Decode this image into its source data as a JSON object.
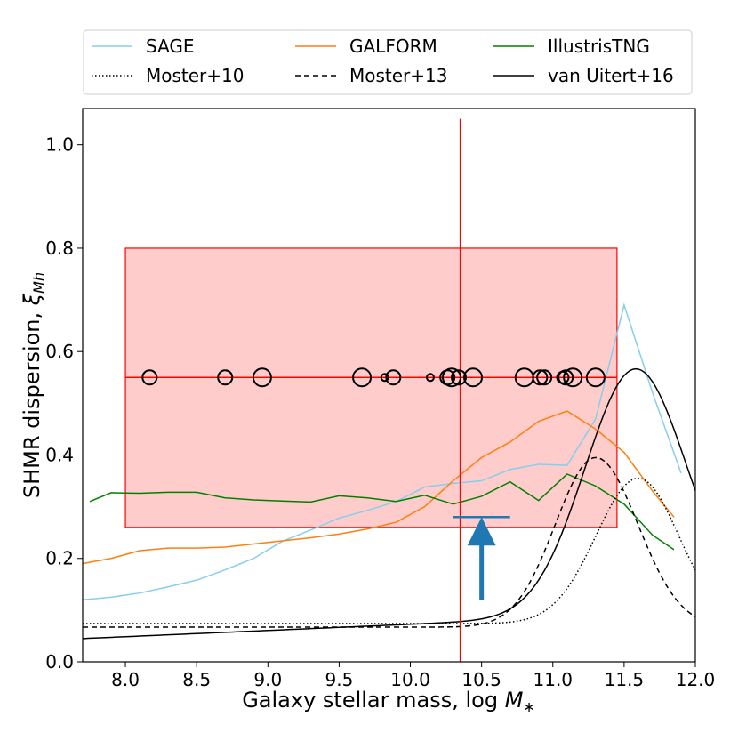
{
  "chart_data": {
    "type": "line",
    "xlabel": "Galaxy stellar mass, log M∗",
    "xlabel_parts": {
      "text": "Galaxy stellar mass, log ",
      "symbol": "M",
      "subscript": "∗"
    },
    "ylabel": "SHMR dispersion, ξMh",
    "ylabel_parts": {
      "text": "SHMR dispersion, ",
      "symbol": "ξ",
      "subscript": "Mh"
    },
    "xlim": [
      7.7,
      12.0
    ],
    "ylim": [
      0.0,
      1.07
    ],
    "xticks": [
      "8.0",
      "8.5",
      "9.0",
      "9.5",
      "10.0",
      "10.5",
      "11.0",
      "11.5",
      "12.0"
    ],
    "xtick_values": [
      8.0,
      8.5,
      9.0,
      9.5,
      10.0,
      10.5,
      11.0,
      11.5,
      12.0
    ],
    "yticks": [
      "0.0",
      "0.2",
      "0.4",
      "0.6",
      "0.8",
      "1.0"
    ],
    "ytick_values": [
      0.0,
      0.2,
      0.4,
      0.6,
      0.8,
      1.0
    ],
    "legend": [
      {
        "label": "SAGE",
        "color": "#87CEEB",
        "style": "solid"
      },
      {
        "label": "GALFORM",
        "color": "#FF7F0E",
        "style": "solid"
      },
      {
        "label": "IllustrisTNG",
        "color": "#008000",
        "style": "solid"
      },
      {
        "label": "Moster+10",
        "color": "#000000",
        "style": "dotted"
      },
      {
        "label": "Moster+13",
        "color": "#000000",
        "style": "dashed"
      },
      {
        "label": "van Uitert+16",
        "color": "#000000",
        "style": "solid"
      }
    ],
    "series": [
      {
        "name": "SAGE",
        "color": "#87CEEB",
        "style": "solid",
        "x": [
          7.7,
          7.9,
          8.1,
          8.3,
          8.5,
          8.7,
          8.9,
          9.1,
          9.3,
          9.5,
          9.7,
          9.9,
          10.1,
          10.3,
          10.5,
          10.7,
          10.9,
          11.1,
          11.3,
          11.5,
          11.7,
          11.9
        ],
        "y": [
          0.12,
          0.125,
          0.133,
          0.145,
          0.158,
          0.178,
          0.2,
          0.233,
          0.255,
          0.278,
          0.293,
          0.31,
          0.338,
          0.345,
          0.35,
          0.372,
          0.382,
          0.38,
          0.47,
          0.69,
          0.52,
          0.365
        ]
      },
      {
        "name": "GALFORM",
        "color": "#FF7F0E",
        "style": "solid",
        "x": [
          7.7,
          7.9,
          8.1,
          8.3,
          8.5,
          8.7,
          8.9,
          9.1,
          9.3,
          9.5,
          9.7,
          9.9,
          10.1,
          10.3,
          10.5,
          10.7,
          10.9,
          11.1,
          11.3,
          11.5,
          11.7,
          11.85
        ],
        "y": [
          0.19,
          0.2,
          0.215,
          0.22,
          0.22,
          0.222,
          0.228,
          0.234,
          0.24,
          0.247,
          0.257,
          0.27,
          0.3,
          0.35,
          0.395,
          0.425,
          0.465,
          0.485,
          0.45,
          0.405,
          0.33,
          0.28
        ]
      },
      {
        "name": "IllustrisTNG",
        "color": "#008000",
        "style": "solid",
        "x": [
          7.75,
          7.9,
          8.1,
          8.3,
          8.5,
          8.7,
          8.9,
          9.1,
          9.3,
          9.5,
          9.7,
          9.9,
          10.1,
          10.3,
          10.5,
          10.7,
          10.9,
          11.1,
          11.3,
          11.5,
          11.7,
          11.85
        ],
        "y": [
          0.31,
          0.327,
          0.326,
          0.328,
          0.328,
          0.317,
          0.313,
          0.311,
          0.309,
          0.321,
          0.317,
          0.31,
          0.322,
          0.305,
          0.32,
          0.348,
          0.312,
          0.363,
          0.34,
          0.305,
          0.245,
          0.217
        ]
      },
      {
        "name": "Moster+10",
        "color": "#000000",
        "style": "dotted",
        "model": "peak",
        "base": 0.074,
        "peak": 0.355,
        "center": 11.6,
        "width_low": 0.42,
        "width_high": 0.4
      },
      {
        "name": "Moster+13",
        "color": "#000000",
        "style": "dashed",
        "model": "peak",
        "base": 0.067,
        "peak": 0.395,
        "center": 11.3,
        "width_low": 0.4,
        "width_high": 0.42
      },
      {
        "name": "van Uitert+16",
        "color": "#000000",
        "style": "solid",
        "model": "peak",
        "base": 0.045,
        "peak": 0.52,
        "center": 11.58,
        "width_low": 0.5,
        "width_high": 0.5,
        "slope": 0.012
      }
    ],
    "box": {
      "x0": 8.0,
      "x1": 11.45,
      "y0": 0.26,
      "y1": 0.8,
      "fill": "#FF0000",
      "fill_opacity": 0.2,
      "edge": "#FF0000"
    },
    "hline": {
      "y": 0.55,
      "x0": 8.0,
      "x1": 11.45,
      "color": "#FF0000"
    },
    "vline": {
      "x": 10.35,
      "y0": 0.0,
      "y1": 1.05,
      "color": "#FF0000"
    },
    "circles": [
      {
        "x": 8.17,
        "size": "m"
      },
      {
        "x": 8.7,
        "size": "m"
      },
      {
        "x": 8.96,
        "size": "l"
      },
      {
        "x": 9.66,
        "size": "l"
      },
      {
        "x": 9.82,
        "size": "xs"
      },
      {
        "x": 9.88,
        "size": "m"
      },
      {
        "x": 10.14,
        "size": "xs"
      },
      {
        "x": 10.26,
        "size": "m"
      },
      {
        "x": 10.29,
        "size": "l"
      },
      {
        "x": 10.34,
        "size": "m"
      },
      {
        "x": 10.44,
        "size": "l"
      },
      {
        "x": 10.8,
        "size": "l"
      },
      {
        "x": 10.91,
        "size": "m"
      },
      {
        "x": 10.94,
        "size": "m"
      },
      {
        "x": 11.07,
        "size": "s"
      },
      {
        "x": 11.09,
        "size": "m"
      },
      {
        "x": 11.14,
        "size": "l"
      },
      {
        "x": 11.3,
        "size": "l"
      }
    ],
    "circles_y": 0.55,
    "upper_limit": {
      "x": 10.5,
      "y": 0.28,
      "x0": 10.3,
      "x1": 10.7,
      "arrow_to": 0.12,
      "color": "#1F77B4"
    }
  }
}
